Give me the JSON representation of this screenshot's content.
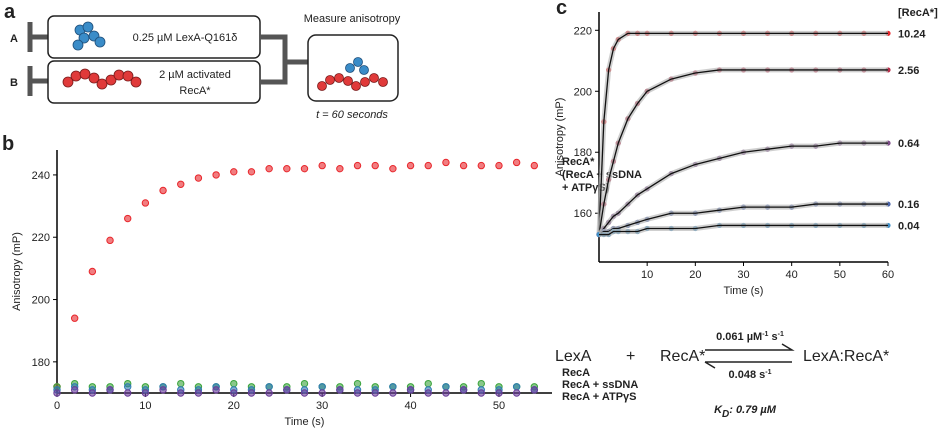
{
  "panel_a": {
    "letter": "a",
    "syringe_a": "A",
    "syringe_b": "B",
    "contents_a": "0.25 µM LexA-Q161δ",
    "contents_b_line1": "2 µM activated",
    "contents_b_line2": "RecA*",
    "measure": "Measure anisotropy",
    "time_var": "t",
    "time_rest": " = 60 seconds"
  },
  "chart_data": [
    {
      "type": "scatter",
      "letter": "b",
      "x_label": "Time (s)",
      "y_label": "Anisotropy (mP)",
      "x": [
        0,
        2,
        4,
        6,
        8,
        10,
        12,
        14,
        16,
        18,
        20,
        22,
        24,
        26,
        28,
        30,
        32,
        34,
        36,
        38,
        40,
        42,
        44,
        46,
        48,
        50,
        52,
        54
      ],
      "xlim": [
        0,
        56
      ],
      "xticks": [
        0,
        10,
        20,
        30,
        40,
        50
      ],
      "ylim": [
        170,
        248
      ],
      "yticks": [
        180,
        200,
        220,
        240
      ],
      "series": [
        {
          "name": "RecA*\n(RecA + ssDNA\n+ ATPγS)",
          "color": "#e8262b",
          "values": [
            172,
            194,
            209,
            219,
            226,
            231,
            235,
            237,
            239,
            240,
            241,
            241,
            242,
            242,
            242,
            243,
            242,
            243,
            243,
            242,
            243,
            243,
            244,
            243,
            243,
            243,
            244,
            243
          ]
        },
        {
          "name": "RecA",
          "color": "#3aa43c",
          "values": [
            172,
            173,
            172,
            172,
            173,
            172,
            172,
            173,
            172,
            172,
            173,
            172,
            172,
            172,
            173,
            172,
            172,
            173,
            172,
            172,
            172,
            173,
            172,
            172,
            173,
            172,
            172,
            172
          ]
        },
        {
          "name": "RecA + ssDNA",
          "color": "#2e7bb3",
          "values": [
            171,
            172,
            171,
            171,
            172,
            171,
            172,
            171,
            171,
            172,
            171,
            171,
            172,
            171,
            171,
            172,
            171,
            171,
            171,
            172,
            171,
            171,
            172,
            171,
            171,
            171,
            172,
            171
          ]
        },
        {
          "name": "RecA + ATPγS",
          "color": "#6a3d9a",
          "values": [
            170,
            171,
            170,
            171,
            170,
            170,
            171,
            170,
            170,
            171,
            170,
            170,
            170,
            171,
            170,
            170,
            171,
            170,
            170,
            170,
            171,
            170,
            170,
            171,
            170,
            170,
            170,
            171
          ]
        }
      ]
    },
    {
      "type": "line",
      "letter": "c",
      "x_label": "Time (s)",
      "y_label": "Anisotropy (mP)",
      "legend_title": "[RecA*]",
      "x": [
        0,
        1,
        2,
        3,
        4,
        6,
        8,
        10,
        15,
        20,
        25,
        30,
        35,
        40,
        45,
        50,
        55,
        60
      ],
      "xlim": [
        0,
        60
      ],
      "xticks": [
        10,
        20,
        30,
        40,
        50,
        60
      ],
      "ylim": [
        144,
        226
      ],
      "yticks": [
        160,
        180,
        200,
        220
      ],
      "series": [
        {
          "name": "10.24",
          "color": "#e8262b",
          "values": [
            153,
            190,
            207,
            214,
            217,
            219,
            219,
            219,
            219,
            219,
            219,
            219,
            219,
            219,
            219,
            219,
            219,
            219
          ]
        },
        {
          "name": "2.56",
          "color": "#b82e4a",
          "values": [
            153,
            163,
            171,
            177,
            183,
            191,
            196,
            200,
            204,
            206,
            207,
            207,
            207,
            207,
            207,
            207,
            207,
            207
          ]
        },
        {
          "name": "0.64",
          "color": "#7b4a86",
          "values": [
            153,
            155,
            157,
            159,
            160,
            163,
            166,
            168,
            173,
            176,
            178,
            180,
            181,
            182,
            182,
            183,
            183,
            183
          ]
        },
        {
          "name": "0.16",
          "color": "#4a64a8",
          "values": [
            153,
            154,
            154,
            155,
            155,
            156,
            157,
            158,
            160,
            160,
            161,
            162,
            162,
            162,
            163,
            163,
            163,
            163
          ]
        },
        {
          "name": "0.04",
          "color": "#3f8fc7",
          "values": [
            153,
            153,
            153,
            154,
            154,
            154,
            154,
            155,
            155,
            155,
            156,
            156,
            156,
            156,
            156,
            156,
            156,
            156
          ]
        }
      ]
    }
  ],
  "equation": {
    "reactant1": "LexA",
    "plus": "+",
    "reactant2": "RecA*",
    "product": "LexA:RecA*",
    "kon": {
      "number": "0.061 µM",
      "exp1": "-1",
      "unit": " s",
      "exp2": "-1"
    },
    "koff": {
      "number": "0.048 s",
      "exp": "-1"
    },
    "kd": {
      "symbol": "K",
      "sub": "D",
      "value": ": 0.79 µM"
    }
  }
}
